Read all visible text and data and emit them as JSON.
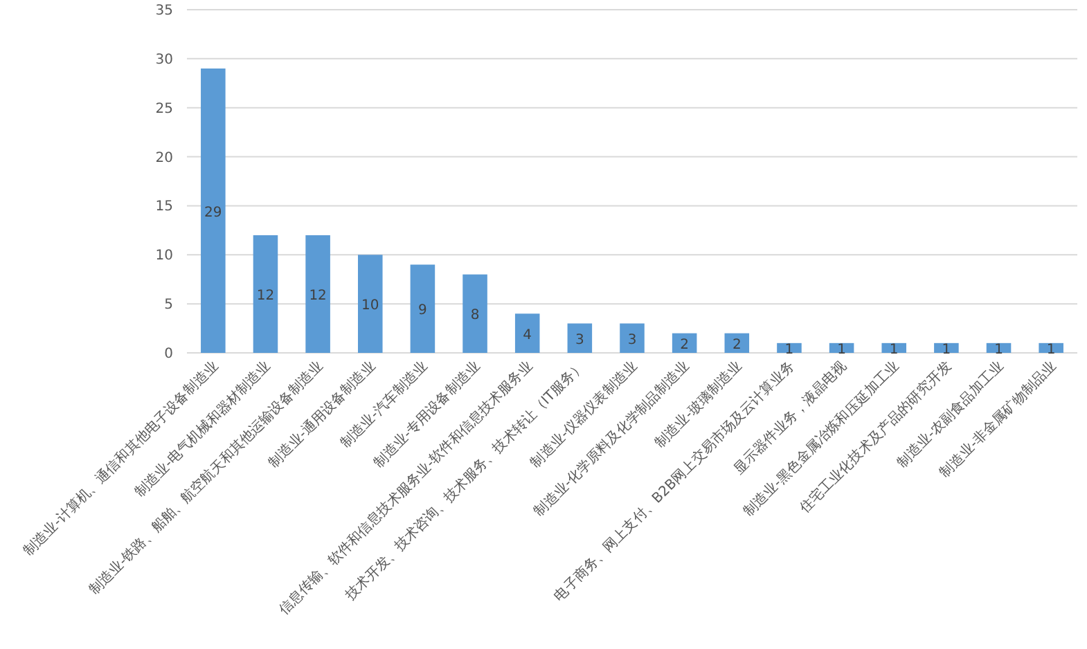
{
  "chart_data": {
    "type": "bar",
    "categories": [
      "制造业-计算机、通信和其他电子设备制造业",
      "制造业-电气机械和器材制造业",
      "制造业-铁路、船舶、航空航天和其他运输设备制造业",
      "制造业-通用设备制造业",
      "制造业-汽车制造业",
      "制造业-专用设备制造业",
      "信息传输、软件和信息技术服务业-软件和信息技术服务业",
      "技术开发、技术咨询、技术服务、技术转让（IT服务）",
      "制造业-仪器仪表制造业",
      "制造业-化学原料及化学制品制造业",
      "制造业-玻璃制造业",
      "电子商务、网上支付、B2B网上交易市场及云计算业务",
      "显示器件业务，液晶电视",
      "制造业-黑色金属冶炼和压延加工业",
      "住宅工业化技术及产品的研究开发",
      "制造业-农副食品加工业",
      "制造业-非金属矿物制品业"
    ],
    "values": [
      29,
      12,
      12,
      10,
      9,
      8,
      4,
      3,
      3,
      2,
      2,
      1,
      1,
      1,
      1,
      1,
      1
    ],
    "color": "#5b9bd5",
    "ylim": [
      0,
      35
    ],
    "yticks": [
      0,
      5,
      10,
      15,
      20,
      25,
      30,
      35
    ],
    "grid": "y",
    "data_labels": true
  }
}
